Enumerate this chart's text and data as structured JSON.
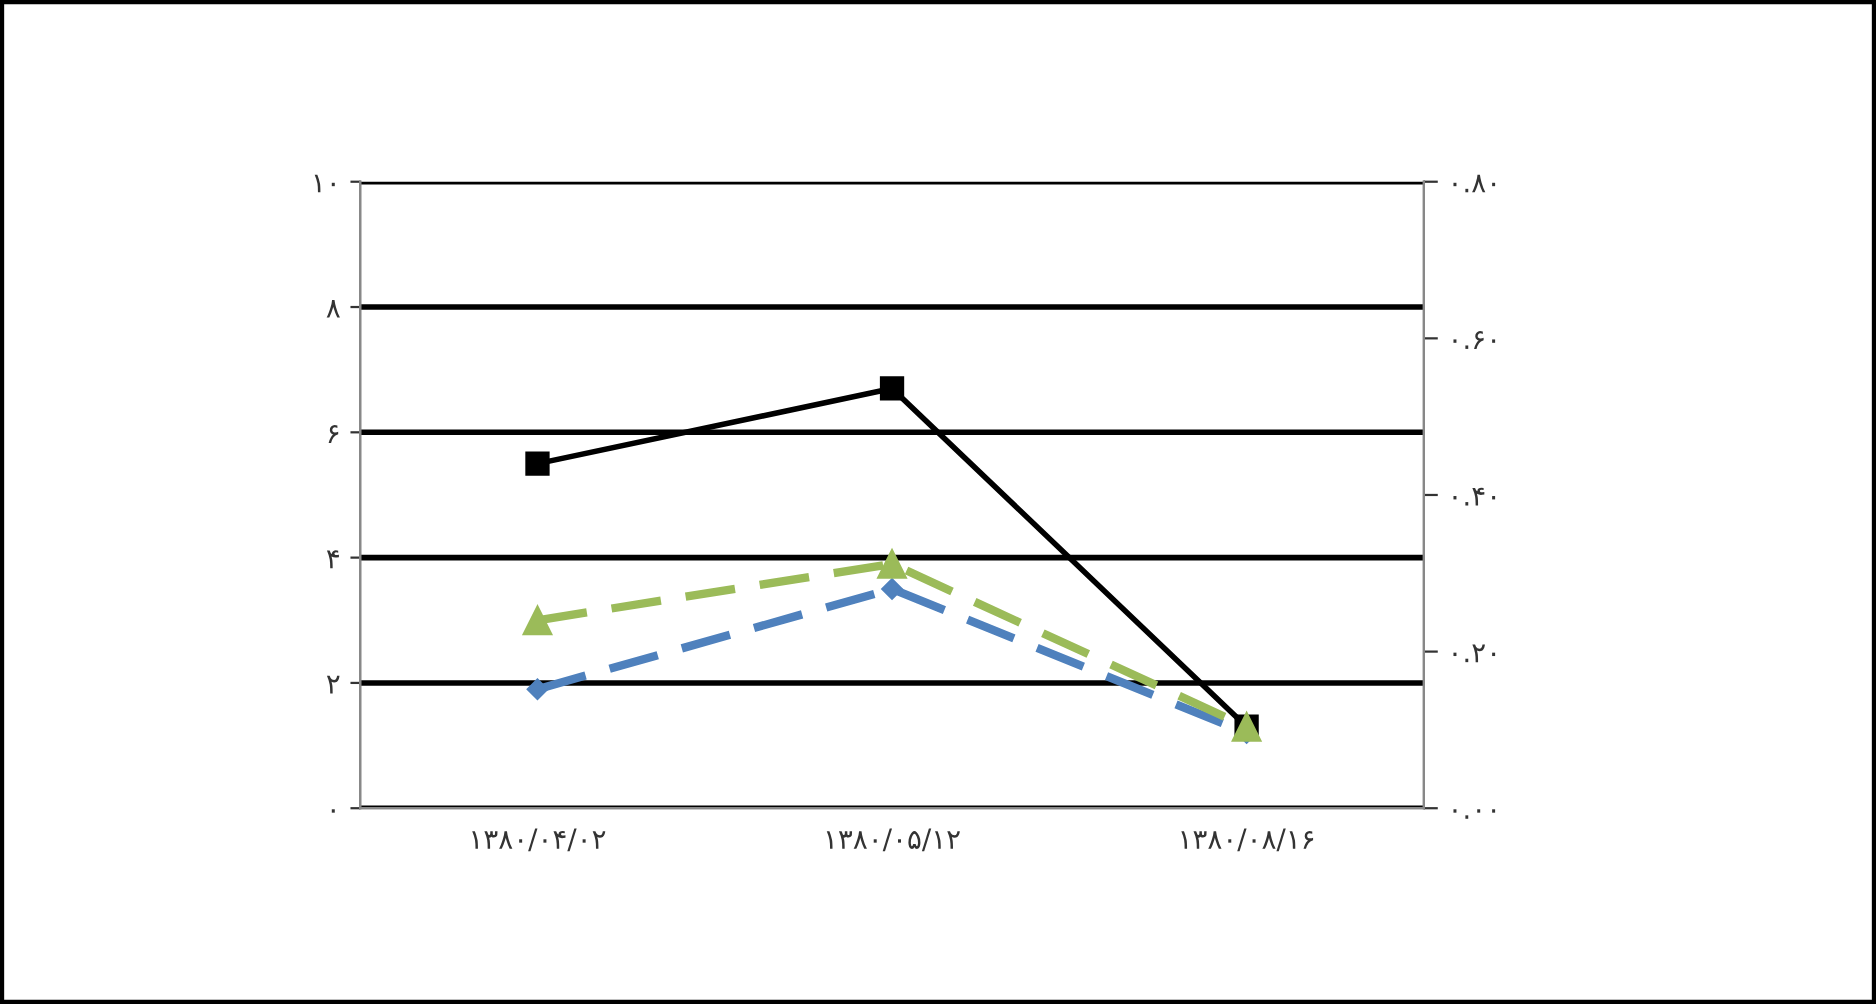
{
  "chart_data": {
    "type": "line",
    "categories": [
      "۱۳۸۰/۰۴/۰۲",
      "۱۳۸۰/۰۵/۱۲",
      "۱۳۸۰/۰۸/۱۶"
    ],
    "series": [
      {
        "color": "#4f81bd",
        "values": [
          1.9,
          3.5,
          1.2
        ],
        "marker": "diamond",
        "line_style": "dashed"
      },
      {
        "color": "#000000",
        "values": [
          5.5,
          6.7,
          1.3
        ],
        "marker": "square",
        "line_style": "solid"
      },
      {
        "color": "#9bbb59",
        "values": [
          3.0,
          3.9,
          1.3
        ],
        "marker": "triangle",
        "line_style": "dashed"
      }
    ],
    "ylim": [
      0,
      10
    ],
    "yticks": [
      {
        "value": 0,
        "label": "۰"
      },
      {
        "value": 2,
        "label": "۲"
      },
      {
        "value": 4,
        "label": "۴"
      },
      {
        "value": 6,
        "label": "۶"
      },
      {
        "value": 8,
        "label": "۸"
      },
      {
        "value": 10,
        "label": "۱۰"
      }
    ],
    "y2lim": [
      0,
      0.8
    ],
    "y2ticks": [
      {
        "value": 0,
        "label": "۰.۰۰"
      },
      {
        "value": 0.2,
        "label": "۰.۲۰"
      },
      {
        "value": 0.4,
        "label": "۰.۴۰"
      },
      {
        "value": 0.6,
        "label": "۰.۶۰"
      },
      {
        "value": 0.8,
        "label": "۰.۸۰"
      }
    ],
    "grid": "y"
  }
}
